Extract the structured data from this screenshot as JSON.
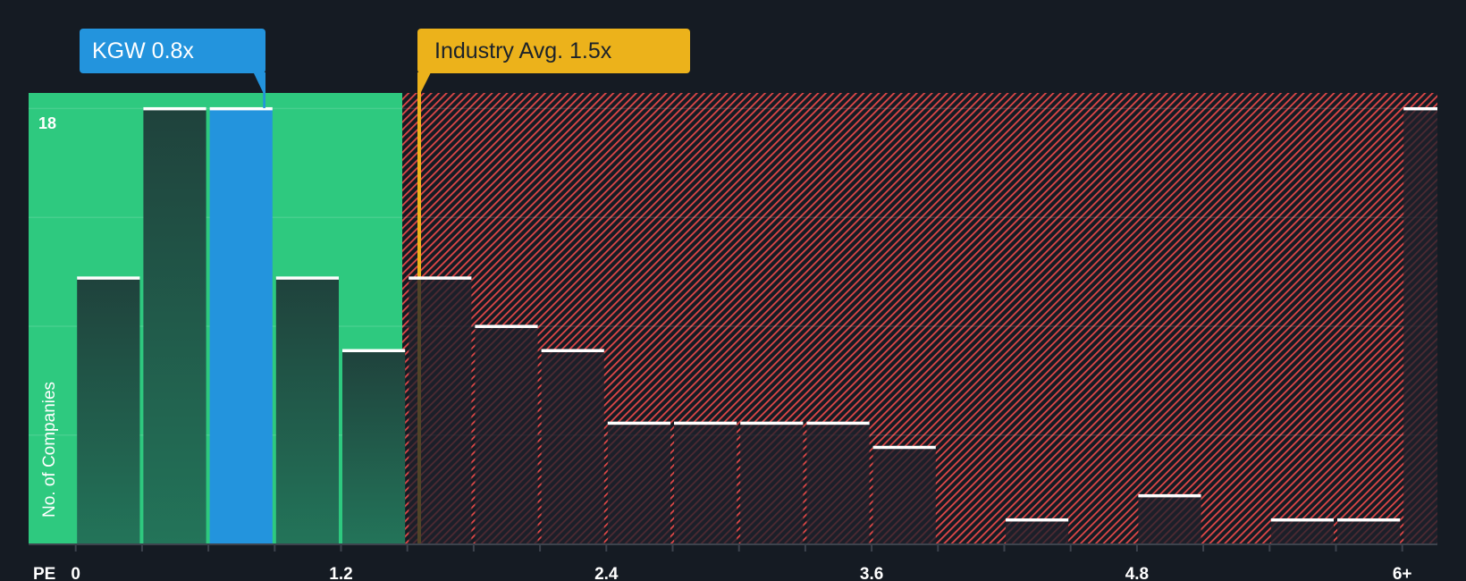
{
  "colors": {
    "background": "#151b23",
    "fair_zone": "#2ec97f",
    "highlight": "#2394dd",
    "industry_avg": "#ecb21b",
    "hatch": "#e04848",
    "bar_cap": "#ffffff",
    "fair_bar_top": "#1f423c",
    "fair_bar_bottom": "#237459",
    "axis": "#3d434d"
  },
  "chart_data": {
    "type": "bar",
    "title": "",
    "xlabel": "PE",
    "ylabel": "No. of Companies",
    "bin_width": 0.3,
    "categories": [
      "0-0.3",
      "0.3-0.6",
      "0.6-0.9",
      "0.9-1.2",
      "1.2-1.5",
      "1.5-1.8",
      "1.8-2.1",
      "2.1-2.4",
      "2.4-2.7",
      "2.7-3.0",
      "3.0-3.3",
      "3.3-3.6",
      "3.6-3.9",
      "3.9-4.2",
      "4.2-4.5",
      "4.5-4.8",
      "4.8-5.1",
      "5.1-5.4",
      "5.4-5.7",
      "5.7-6.0",
      "6+"
    ],
    "values": [
      11,
      18,
      18,
      11,
      8,
      11,
      9,
      8,
      5,
      5,
      5,
      5,
      4,
      0,
      1,
      0,
      2,
      0,
      1,
      1,
      18
    ],
    "x_ticks": [
      {
        "value": 0,
        "label": "0"
      },
      {
        "value": 1.2,
        "label": "1.2"
      },
      {
        "value": 2.4,
        "label": "2.4"
      },
      {
        "value": 3.6,
        "label": "3.6"
      },
      {
        "value": 4.8,
        "label": "4.8"
      },
      {
        "value": 6.0,
        "label": "6+"
      }
    ],
    "y_ticks": [
      {
        "value": 18,
        "label": "18"
      }
    ],
    "gridlines": [
      4.5,
      9,
      13.5,
      18
    ],
    "xlim": [
      0,
      6
    ],
    "ylim": [
      0,
      18
    ],
    "grid": true,
    "legend": "none",
    "highlight": {
      "company": "KGW",
      "value": 0.8,
      "label": "KGW 0.8x",
      "bin_index": 2
    },
    "industry_avg": {
      "value": 1.5,
      "label": "Industry Avg. 1.5x"
    }
  }
}
